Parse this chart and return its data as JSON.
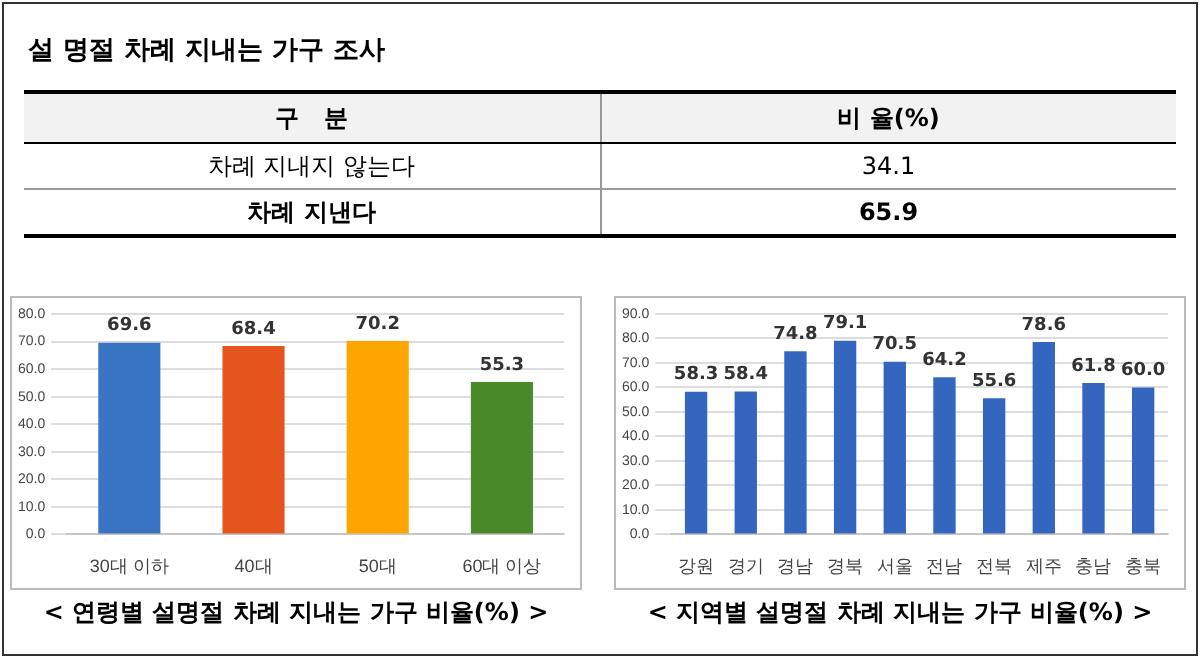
{
  "chart_data": [
    {
      "type": "other",
      "title": "설 명절 차례 지내는 가구 조사",
      "annotations": [
        "구   분",
        "비 율(%)"
      ],
      "categories": [
        "차례 지내지 않는다",
        "차례 지낸다"
      ],
      "values": [
        34.1,
        65.9
      ],
      "data_labels": true
    },
    {
      "type": "bar",
      "title": "< 연령별 설명절 차례 지내는 가구 비율(%) >",
      "categories": [
        "30대 이하",
        "40대",
        "50대",
        "60대 이상"
      ],
      "values": [
        69.6,
        68.4,
        70.2,
        55.3
      ],
      "colors": [
        "#3a75c4",
        "#e5541c",
        "#ffa500",
        "#4a8a2a"
      ],
      "ylim": [
        0,
        80
      ],
      "yticks": [
        {
          "value": 0,
          "label": "0.0"
        },
        {
          "value": 10,
          "label": "10.0"
        },
        {
          "value": 20,
          "label": "20.0"
        },
        {
          "value": 30,
          "label": "30.0"
        },
        {
          "value": 40,
          "label": "40.0"
        },
        {
          "value": 50,
          "label": "50.0"
        },
        {
          "value": 60,
          "label": "60.0"
        },
        {
          "value": 70,
          "label": "70.0"
        },
        {
          "value": 80,
          "label": "80.0"
        }
      ],
      "grid": "y",
      "data_labels": true
    },
    {
      "type": "bar",
      "title": "< 지역별 설명절 차례 지내는 가구 비율(%) >",
      "categories": [
        "강원",
        "경기",
        "경남",
        "경북",
        "서울",
        "전남",
        "전북",
        "제주",
        "충남",
        "충북"
      ],
      "values": [
        58.3,
        58.4,
        74.8,
        79.1,
        70.5,
        64.2,
        55.6,
        78.6,
        61.8,
        60.0
      ],
      "value_labels": [
        "58.3",
        "58.4",
        "74.8",
        "79.1",
        "70.5",
        "64.2",
        "55.6",
        "78.6",
        "61.8",
        "60.0"
      ],
      "color": "#3466c0",
      "ylim": [
        0,
        90
      ],
      "yticks": [
        {
          "value": 0,
          "label": "0.0"
        },
        {
          "value": 10,
          "label": "10.0"
        },
        {
          "value": 20,
          "label": "20.0"
        },
        {
          "value": 30,
          "label": "30.0"
        },
        {
          "value": 40,
          "label": "40.0"
        },
        {
          "value": 50,
          "label": "50.0"
        },
        {
          "value": 60,
          "label": "60.0"
        },
        {
          "value": 70,
          "label": "70.0"
        },
        {
          "value": 80,
          "label": "80.0"
        },
        {
          "value": 90,
          "label": "90.0"
        }
      ],
      "grid": "y",
      "data_labels": true
    }
  ]
}
